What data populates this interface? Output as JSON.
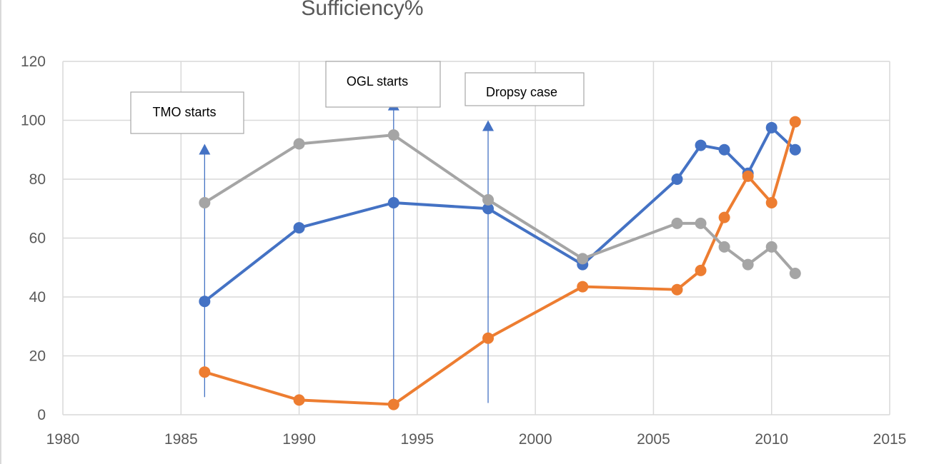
{
  "chart_data": {
    "type": "line",
    "title": "Sufficiency%",
    "xlabel": "",
    "ylabel": "",
    "xlim": [
      1980,
      2015
    ],
    "ylim": [
      0,
      120
    ],
    "xticks": [
      1980,
      1985,
      1990,
      1995,
      2000,
      2005,
      2010,
      2015
    ],
    "yticks": [
      0,
      20,
      40,
      60,
      80,
      100,
      120
    ],
    "grid": true,
    "legend": "none",
    "series": [
      {
        "color": "#4472c4",
        "x": [
          1986,
          1990,
          1994,
          1998,
          2002,
          2006,
          2007,
          2008,
          2009,
          2010,
          2011
        ],
        "y": [
          38.5,
          63.5,
          72,
          70,
          51,
          80,
          91.5,
          90,
          82,
          97.5,
          90
        ]
      },
      {
        "color": "#ed7d31",
        "x": [
          1986,
          1990,
          1994,
          1998,
          2002,
          2006,
          2007,
          2008,
          2009,
          2010,
          2011
        ],
        "y": [
          14.5,
          5,
          3.5,
          26,
          43.5,
          42.5,
          49,
          67,
          81,
          72,
          99.5
        ]
      },
      {
        "color": "#a5a5a5",
        "x": [
          1986,
          1990,
          1994,
          1998,
          2002,
          2006,
          2007,
          2008,
          2009,
          2010,
          2011
        ],
        "y": [
          72,
          92,
          95,
          73,
          53,
          65,
          65,
          57,
          51,
          57,
          48
        ]
      }
    ],
    "annotations": [
      {
        "text": "TMO starts",
        "x": 1986,
        "arrow_from": 6,
        "arrow_to": 92
      },
      {
        "text": "OGL starts",
        "x": 1994,
        "arrow_from": 4,
        "arrow_to": 107
      },
      {
        "text": "Dropsy case",
        "x": 1998,
        "arrow_from": 4,
        "arrow_to": 100
      }
    ]
  },
  "colors": {
    "gridline": "#d9d9d9",
    "axis_text": "#595959",
    "arrow": "#4472c4"
  }
}
